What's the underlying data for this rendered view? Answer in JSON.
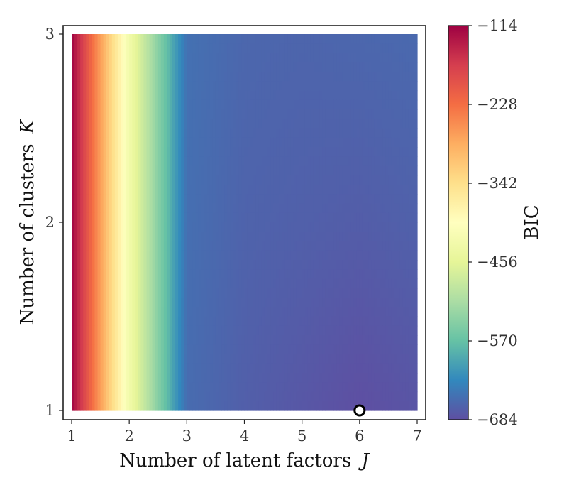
{
  "chart_data": {
    "type": "heatmap",
    "title": "",
    "xlabel": "Number of latent factors",
    "xlabel_symbol": "J",
    "ylabel": "Number of clusters",
    "ylabel_symbol": "K",
    "x_ticks": [
      1,
      2,
      3,
      4,
      5,
      6,
      7
    ],
    "y_ticks": [
      1,
      2,
      3
    ],
    "xlim": [
      1,
      7
    ],
    "ylim": [
      1,
      3
    ],
    "grid": false,
    "colorbar": {
      "label": "BIC",
      "range": [
        -684,
        -114
      ],
      "ticks": [
        -114,
        -228,
        -342,
        -456,
        -570,
        -684
      ],
      "tick_labels": [
        "−114",
        "−228",
        "−342",
        "−456",
        "−570",
        "−684"
      ],
      "colormap": "Spectral",
      "stops": [
        "#5e4fa2",
        "#3288bd",
        "#66c2a5",
        "#abdda4",
        "#e6f598",
        "#ffffbf",
        "#fee08b",
        "#fdae61",
        "#f46d43",
        "#d53e4f",
        "#9e0142"
      ]
    },
    "grid_x": [
      1,
      2,
      3,
      4,
      5,
      6,
      7
    ],
    "grid_y": [
      1,
      2,
      3
    ],
    "bic_values": [
      [
        -114,
        -430,
        -655,
        -668,
        -676,
        -684,
        -678
      ],
      [
        -114,
        -430,
        -652,
        -664,
        -667,
        -670,
        -666
      ],
      [
        -114,
        -430,
        -650,
        -660,
        -662,
        -660,
        -658
      ]
    ],
    "optimum": {
      "J": 6,
      "K": 1,
      "marker": "open-circle"
    }
  }
}
